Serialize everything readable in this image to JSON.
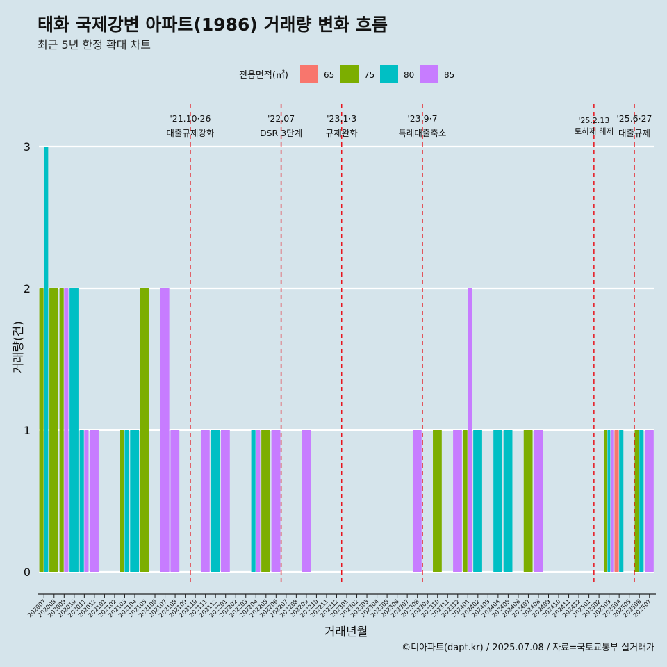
{
  "chart_data": {
    "type": "bar",
    "title": "태화 국제강변 아파트(1986) 거래량 변화 흐름",
    "subtitle": "최근 5년 한정 확대 차트",
    "xlabel": "거래년월",
    "ylabel": "거래량(건)",
    "ylim": [
      0,
      3
    ],
    "yticks": [
      "0",
      "1",
      "2",
      "3"
    ],
    "grid": "horizontal",
    "legend": {
      "title": "전용면적(㎡)",
      "placement": "top",
      "entries": [
        "65",
        "75",
        "80",
        "85"
      ]
    },
    "colors": {
      "65": "#f8766d",
      "75": "#7cae00",
      "80": "#00bfc4",
      "85": "#c77cff"
    },
    "categories": [
      "202007",
      "202008",
      "202009",
      "202010",
      "202011",
      "202012",
      "202101",
      "202102",
      "202103",
      "202104",
      "202105",
      "202106",
      "202107",
      "202108",
      "202109",
      "202110",
      "202111",
      "202112",
      "202201",
      "202202",
      "202203",
      "202204",
      "202205",
      "202206",
      "202207",
      "202208",
      "202209",
      "202210",
      "202211",
      "202212",
      "202301",
      "202302",
      "202303",
      "202304",
      "202305",
      "202306",
      "202307",
      "202308",
      "202309",
      "202310",
      "202311",
      "202312",
      "202401",
      "202402",
      "202403",
      "202404",
      "202405",
      "202406",
      "202407",
      "202408",
      "202409",
      "202410",
      "202411",
      "202412",
      "202501",
      "202502",
      "202503",
      "202504",
      "202505",
      "202506",
      "202507"
    ],
    "bars": [
      {
        "month": "202007",
        "groups": [
          {
            "area": "75",
            "value": 2
          },
          {
            "area": "80",
            "value": 3
          }
        ]
      },
      {
        "month": "202008",
        "groups": [
          {
            "area": "75",
            "value": 2
          }
        ]
      },
      {
        "month": "202009",
        "groups": [
          {
            "area": "75",
            "value": 2
          },
          {
            "area": "85",
            "value": 2
          }
        ]
      },
      {
        "month": "202010",
        "groups": [
          {
            "area": "80",
            "value": 2
          }
        ]
      },
      {
        "month": "202011",
        "groups": [
          {
            "area": "80",
            "value": 1
          },
          {
            "area": "85",
            "value": 1
          }
        ]
      },
      {
        "month": "202012",
        "groups": [
          {
            "area": "85",
            "value": 1
          }
        ]
      },
      {
        "month": "202103",
        "groups": [
          {
            "area": "75",
            "value": 1
          },
          {
            "area": "80",
            "value": 1
          }
        ]
      },
      {
        "month": "202104",
        "groups": [
          {
            "area": "80",
            "value": 1
          }
        ]
      },
      {
        "month": "202105",
        "groups": [
          {
            "area": "75",
            "value": 2
          }
        ]
      },
      {
        "month": "202107",
        "groups": [
          {
            "area": "85",
            "value": 2
          }
        ]
      },
      {
        "month": "202108",
        "groups": [
          {
            "area": "85",
            "value": 1
          }
        ]
      },
      {
        "month": "202111",
        "groups": [
          {
            "area": "85",
            "value": 1
          }
        ]
      },
      {
        "month": "202112",
        "groups": [
          {
            "area": "80",
            "value": 1
          }
        ]
      },
      {
        "month": "202201",
        "groups": [
          {
            "area": "85",
            "value": 1
          }
        ]
      },
      {
        "month": "202204",
        "groups": [
          {
            "area": "80",
            "value": 1
          },
          {
            "area": "85",
            "value": 1
          }
        ]
      },
      {
        "month": "202205",
        "groups": [
          {
            "area": "75",
            "value": 1
          }
        ]
      },
      {
        "month": "202206",
        "groups": [
          {
            "area": "85",
            "value": 1
          }
        ]
      },
      {
        "month": "202209",
        "groups": [
          {
            "area": "85",
            "value": 1
          }
        ]
      },
      {
        "month": "202308",
        "groups": [
          {
            "area": "85",
            "value": 1
          }
        ]
      },
      {
        "month": "202310",
        "groups": [
          {
            "area": "75",
            "value": 1
          }
        ]
      },
      {
        "month": "202312",
        "groups": [
          {
            "area": "85",
            "value": 1
          }
        ]
      },
      {
        "month": "202401",
        "groups": [
          {
            "area": "75",
            "value": 1
          },
          {
            "area": "85",
            "value": 2
          }
        ]
      },
      {
        "month": "202402",
        "groups": [
          {
            "area": "80",
            "value": 1
          }
        ]
      },
      {
        "month": "202404",
        "groups": [
          {
            "area": "80",
            "value": 1
          }
        ]
      },
      {
        "month": "202405",
        "groups": [
          {
            "area": "80",
            "value": 1
          }
        ]
      },
      {
        "month": "202407",
        "groups": [
          {
            "area": "75",
            "value": 1
          }
        ]
      },
      {
        "month": "202408",
        "groups": [
          {
            "area": "85",
            "value": 1
          }
        ]
      },
      {
        "month": "202503",
        "groups": [
          {
            "area": "75",
            "value": 1
          },
          {
            "area": "80",
            "value": 1
          },
          {
            "area": "85",
            "value": 1
          }
        ]
      },
      {
        "month": "202504",
        "groups": [
          {
            "area": "65",
            "value": 1
          },
          {
            "area": "80",
            "value": 1
          }
        ]
      },
      {
        "month": "202506",
        "groups": [
          {
            "area": "75",
            "value": 1
          },
          {
            "area": "80",
            "value": 1
          }
        ]
      },
      {
        "month": "202507",
        "groups": [
          {
            "area": "85",
            "value": 1
          }
        ]
      }
    ],
    "annotations": [
      {
        "month": "202110",
        "date": "'21.10·26",
        "label": "대출규제강화",
        "level": "upper"
      },
      {
        "month": "202207",
        "date": "'22.07",
        "label": "DSR 3단계",
        "level": "upper"
      },
      {
        "month": "202301",
        "date": "'23.1·3",
        "label": "규제완화",
        "level": "upper"
      },
      {
        "month": "202309",
        "date": "'23.9·7",
        "label": "특례대출축소",
        "level": "upper"
      },
      {
        "month": "202502",
        "date": "'25.2.13",
        "label": "토허제 해제",
        "level": "lower"
      },
      {
        "month": "202506",
        "date": "'25.6·27",
        "label": "대출규제",
        "level": "upper"
      }
    ]
  },
  "caption": "©디아파트(dapt.kr) / 2025.07.08 / 자료=국토교통부 실거래가"
}
